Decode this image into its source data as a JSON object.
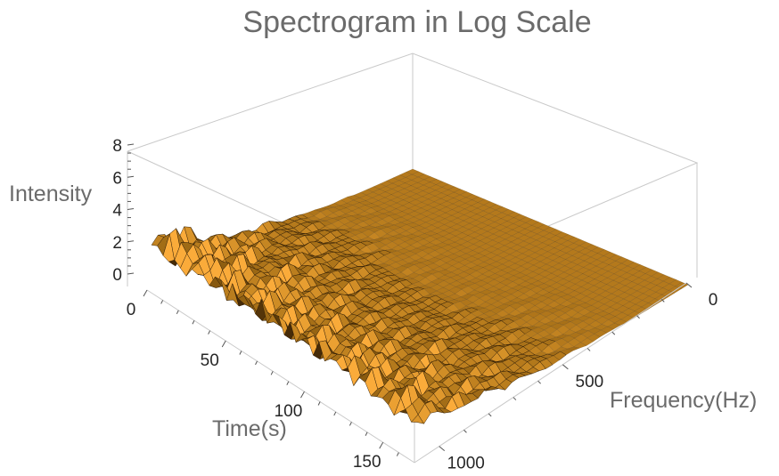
{
  "chart_data": {
    "type": "surface3d",
    "title": "Spectrogram in Log Scale",
    "x_axis": {
      "label": "Time(s)",
      "range": [
        0,
        170
      ],
      "ticks": [
        0,
        50,
        100,
        150
      ]
    },
    "y_axis": {
      "label": "Frequency(Hz)",
      "range": [
        0,
        1100
      ],
      "ticks": [
        0,
        500,
        1000
      ]
    },
    "z_axis": {
      "label": "Intensity",
      "range": [
        -1,
        8
      ],
      "ticks": [
        0,
        2,
        4,
        6,
        8
      ]
    },
    "surface": {
      "description_values": {
        "baseline_intensity": 0,
        "max_intensity_near_time0_low_freq": 5.5,
        "typical_peak_intensity": 3
      }
    },
    "colors": {
      "surface_light": "#f7a93a",
      "surface_mid": "#e38a12",
      "surface_dark": "#3a2408",
      "box_edge": "#c9c9c9"
    }
  }
}
